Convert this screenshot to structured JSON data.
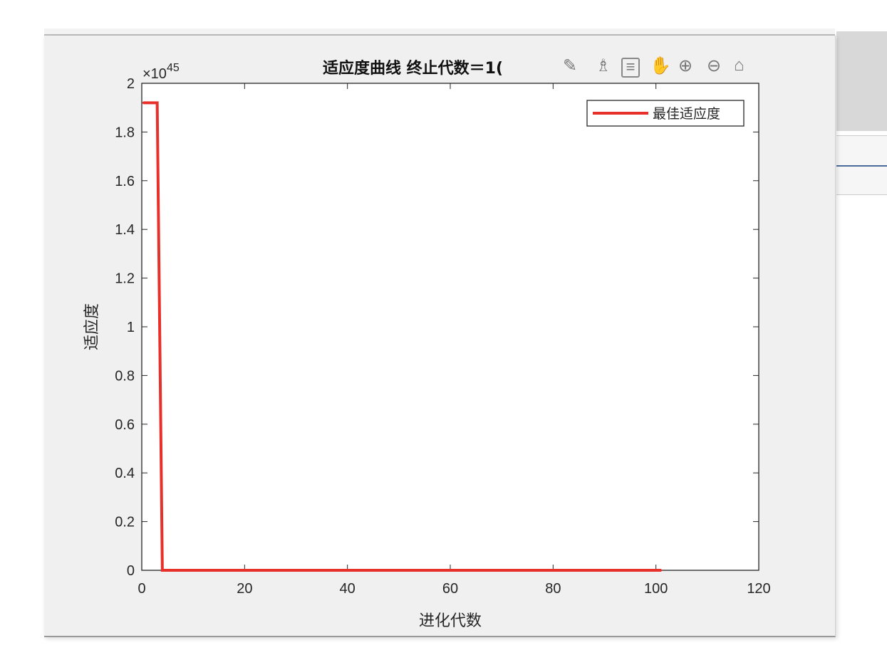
{
  "toolbar": {
    "icons": [
      "edit-plot-icon",
      "brush-icon",
      "data-tips-icon",
      "pan-hand-icon",
      "zoom-in-icon",
      "zoom-out-icon",
      "home-icon"
    ]
  },
  "chart_data": {
    "type": "line",
    "title": "适应度曲线  终止代数＝1(",
    "xlabel": "进化代数",
    "ylabel": "适应度",
    "exponent_label": "×10",
    "exponent": "45",
    "xlim": [
      0,
      120
    ],
    "ylim": [
      0,
      2
    ],
    "xticks": [
      "0",
      "20",
      "40",
      "60",
      "80",
      "100",
      "120"
    ],
    "yticks": [
      "0",
      "0.2",
      "0.4",
      "0.6",
      "0.8",
      "1",
      "1.2",
      "1.4",
      "1.6",
      "1.8",
      "2"
    ],
    "grid": false,
    "legend_position": "top-right",
    "series": [
      {
        "name": "最佳适应度",
        "color": "#e8302a",
        "x": [
          0.3,
          3,
          4,
          101
        ],
        "y": [
          1.92,
          1.92,
          0,
          0
        ]
      }
    ]
  }
}
